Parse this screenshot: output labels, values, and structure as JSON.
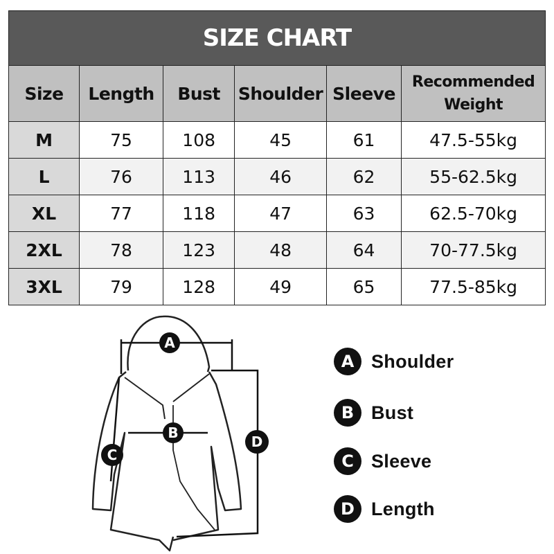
{
  "title": "SIZE CHART",
  "columns": [
    "Size",
    "Length",
    "Bust",
    "Shoulder",
    "Sleeve",
    "Recommended Weight"
  ],
  "rows": [
    [
      "M",
      "75",
      "108",
      "45",
      "61",
      "47.5-55kg"
    ],
    [
      "L",
      "76",
      "113",
      "46",
      "62",
      "55-62.5kg"
    ],
    [
      "XL",
      "77",
      "118",
      "47",
      "63",
      "62.5-70kg"
    ],
    [
      "2XL",
      "78",
      "123",
      "48",
      "64",
      "70-77.5kg"
    ],
    [
      "3XL",
      "79",
      "128",
      "49",
      "65",
      "77.5-85kg"
    ]
  ],
  "legend": [
    {
      "letter": "A",
      "label": "Shoulder"
    },
    {
      "letter": "B",
      "label": "Bust"
    },
    {
      "letter": "C",
      "label": "Sleeve"
    },
    {
      "letter": "D",
      "label": "Length"
    }
  ],
  "colors": {
    "title_bg": "#595959",
    "header_bg": "#c0c0c0",
    "size_col_bg": "#d9d9d9",
    "alt_row_bg": "#f2f2f2"
  }
}
